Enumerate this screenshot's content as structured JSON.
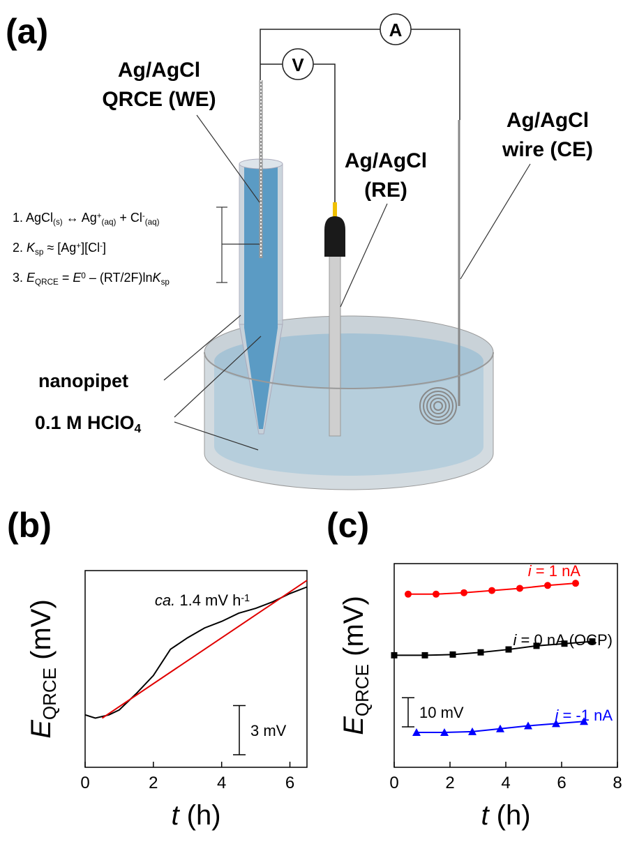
{
  "panel_a": {
    "label": "(a)",
    "we_label": [
      "Ag/AgCl",
      "QRCE (WE)"
    ],
    "re_label": [
      "Ag/AgCl",
      "(RE)"
    ],
    "ce_label": [
      "Ag/AgCl",
      "wire (CE)"
    ],
    "ammeter": "A",
    "voltmeter": "V",
    "pipet_label": "nanopipet",
    "electrolyte_label": [
      "0.1 M HClO",
      "4"
    ],
    "equations": [
      [
        "1. AgCl",
        "(s)",
        " ↔ Ag",
        "+",
        "(aq)",
        " + Cl",
        "-",
        "(aq)"
      ],
      [
        "2. ",
        "K",
        "sp",
        " ≈ [Ag",
        "+",
        "][Cl",
        "-",
        "]"
      ],
      [
        "3. ",
        "E",
        "QRCE",
        " = ",
        "E",
        "0",
        " – (RT/2F)ln",
        "K",
        "sp"
      ]
    ]
  },
  "chart_data": [
    {
      "type": "line",
      "label": "(b)",
      "xlabel": [
        "t",
        " (h)"
      ],
      "ylabel": [
        "E",
        "QRCE",
        " (mV)"
      ],
      "xlim": [
        0,
        6.5
      ],
      "xticks": [
        0,
        2,
        4,
        6
      ],
      "ylim": [
        0,
        12
      ],
      "series": [
        {
          "color": "#000000",
          "x": [
            0,
            0.3,
            0.7,
            1,
            1.5,
            2,
            2.5,
            3,
            3.5,
            4,
            4.5,
            5,
            5.5,
            6,
            6.5
          ],
          "values": [
            3.2,
            3.0,
            3.2,
            3.5,
            4.5,
            5.6,
            7.2,
            7.9,
            8.5,
            8.9,
            9.4,
            9.7,
            10.1,
            10.6,
            11.0
          ]
        },
        {
          "color": "#e00000",
          "x": [
            0.5,
            6.5
          ],
          "values": [
            3.0,
            11.4
          ]
        }
      ],
      "annotation": [
        "ca.",
        " 1.4 mV h",
        "-1"
      ],
      "scale_bar": {
        "value": 3,
        "label": "3 mV"
      }
    },
    {
      "type": "line",
      "label": "(c)",
      "xlabel": [
        "t",
        " (h)"
      ],
      "ylabel": [
        "E",
        "QRCE",
        " (mV)"
      ],
      "xlim": [
        0,
        8
      ],
      "xticks": [
        0,
        2,
        4,
        6,
        8
      ],
      "ylim": [
        0,
        70
      ],
      "series": [
        {
          "name": "i = 1 nA",
          "color": "#ff0000",
          "marker": "circle",
          "x": [
            0.5,
            1.5,
            2.5,
            3.5,
            4.5,
            5.5,
            6.5
          ],
          "values": [
            59.5,
            59.5,
            60,
            60.75,
            61.5,
            62.5,
            63.25
          ]
        },
        {
          "name": "i = 0 nA (OCP)",
          "color": "#000000",
          "marker": "square",
          "x": [
            0,
            1.1,
            2.1,
            3.1,
            4.1,
            5.1,
            6.1,
            7.1
          ],
          "values": [
            38.5,
            38.5,
            38.75,
            39.5,
            40.5,
            41.75,
            42.5,
            43.25
          ]
        },
        {
          "name": "i = -1 nA",
          "color": "#0000ff",
          "marker": "triangle",
          "x": [
            0.8,
            1.8,
            2.8,
            3.8,
            4.8,
            5.8,
            6.8
          ],
          "values": [
            12,
            12,
            12.25,
            13.25,
            14.25,
            15,
            15.75
          ]
        }
      ],
      "scale_bar": {
        "value": 10,
        "label": "10 mV"
      }
    }
  ]
}
